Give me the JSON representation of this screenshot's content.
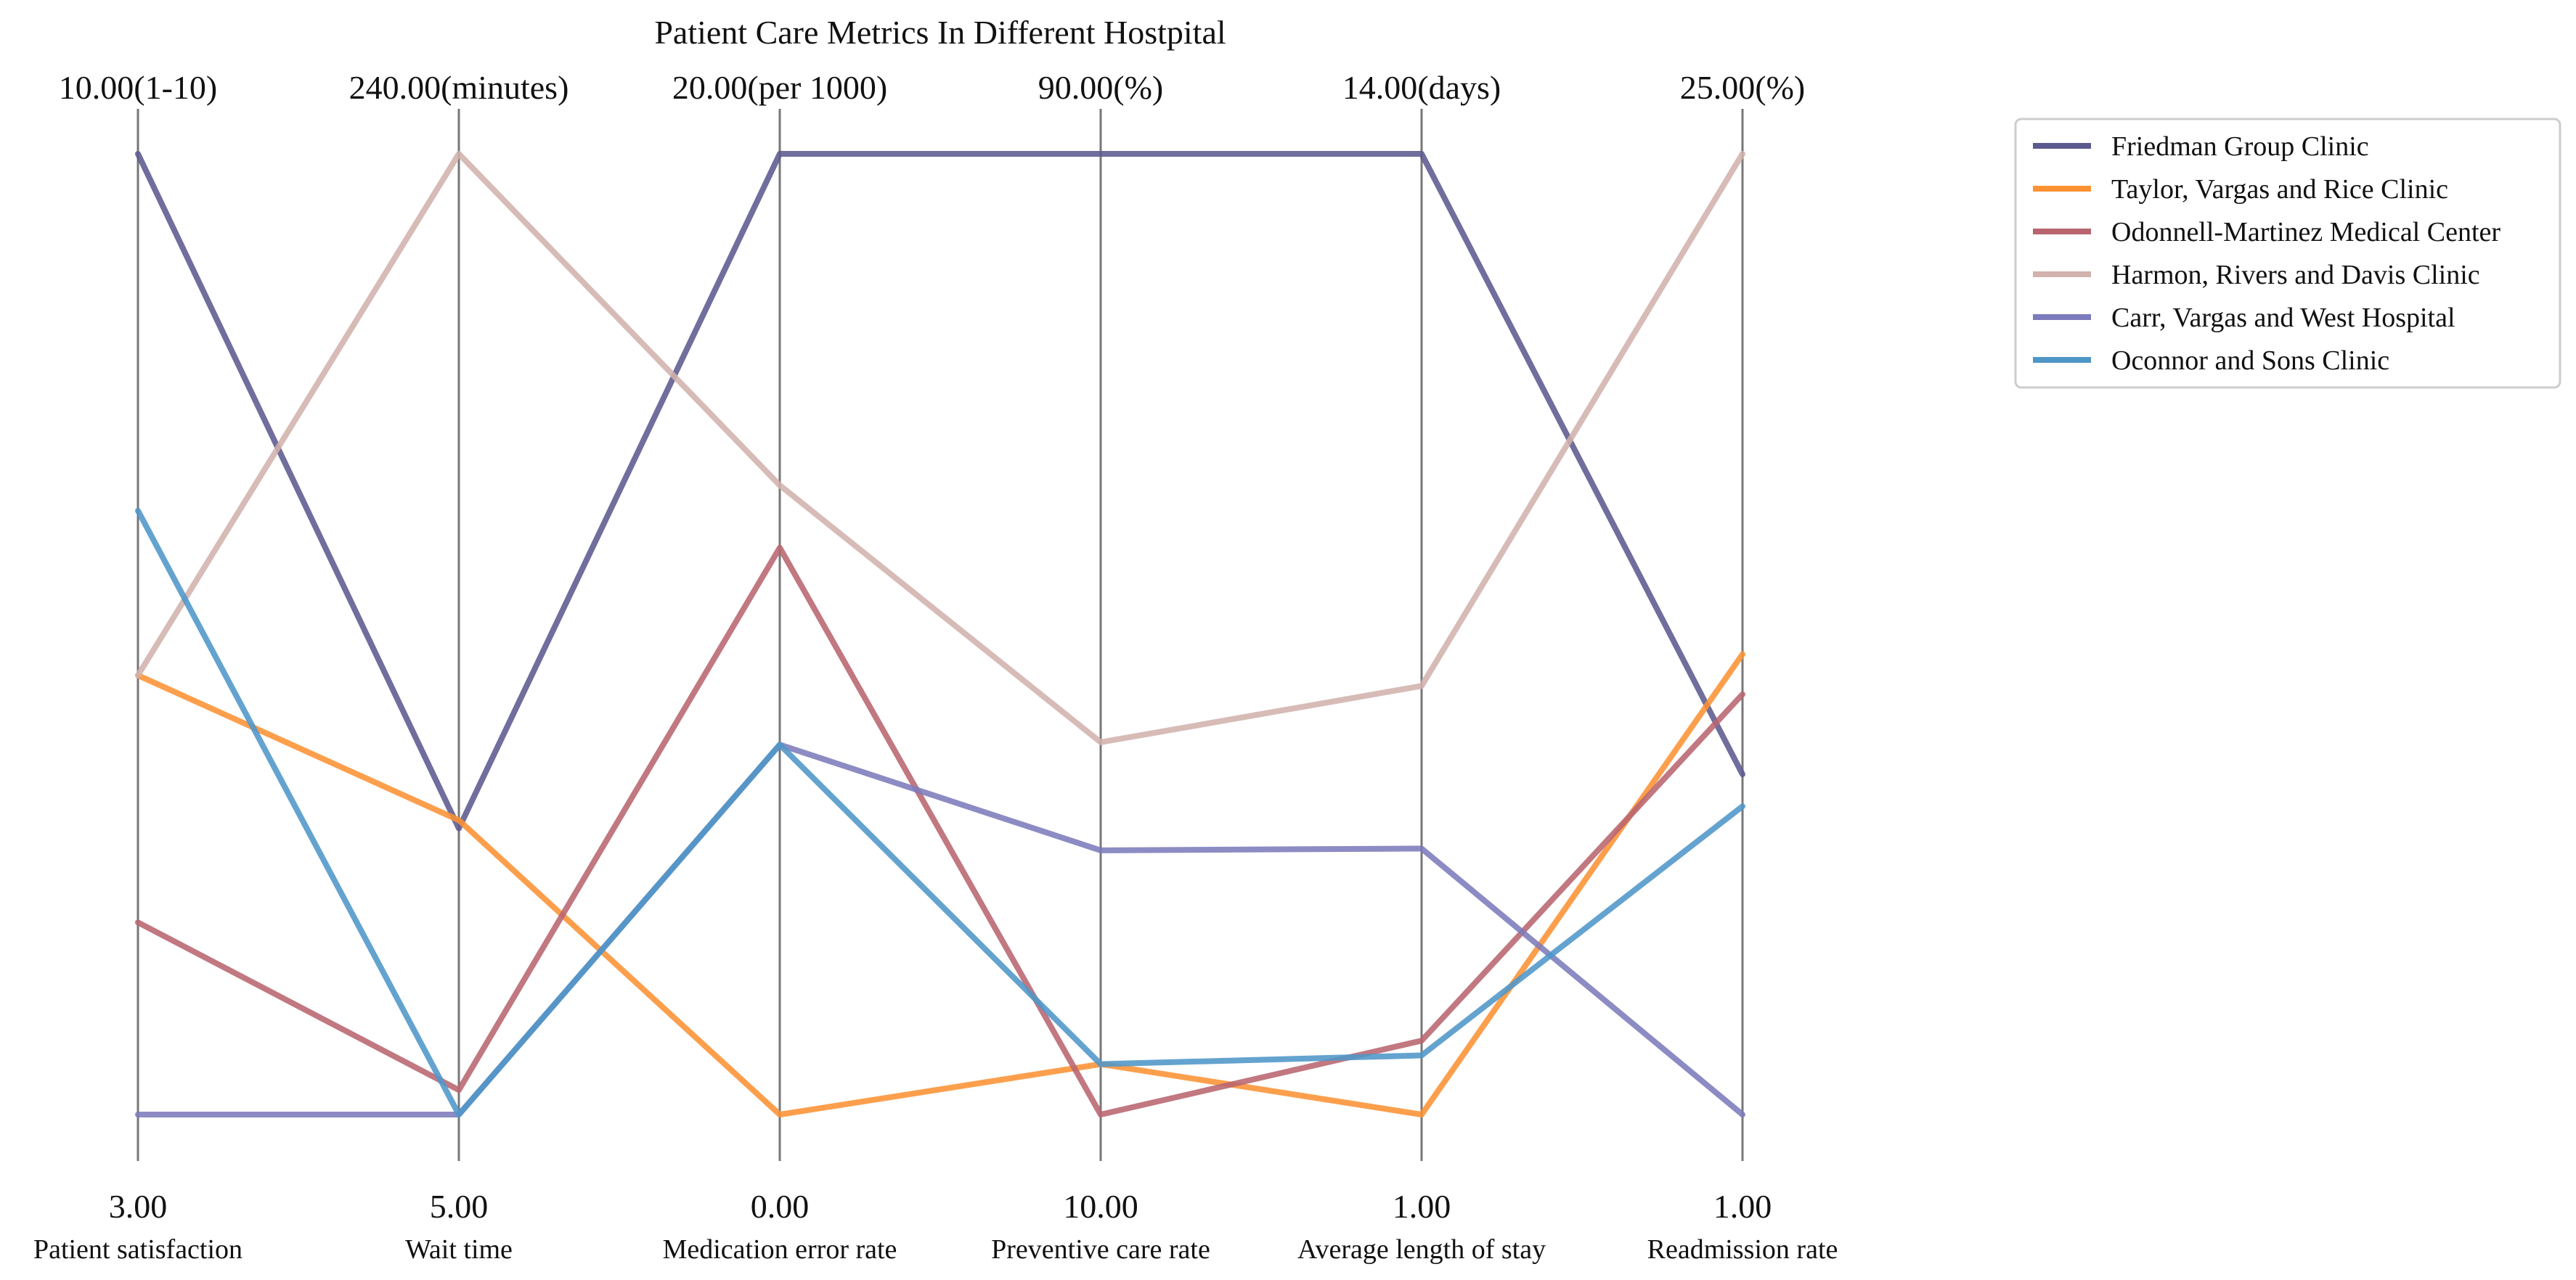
{
  "chart_data": {
    "type": "parallel-coordinates",
    "title": "Patient Care Metrics In Different Hostpital",
    "legend_position": "right",
    "axes": [
      {
        "name": "Patient satisfaction",
        "min": 3,
        "max": 10,
        "min_label": "3.00",
        "max_label": "10.00(1-10)"
      },
      {
        "name": "Wait time",
        "min": 5,
        "max": 240,
        "min_label": "5.00",
        "max_label": "240.00(minutes)"
      },
      {
        "name": "Medication error rate",
        "min": 0,
        "max": 20,
        "min_label": "0.00",
        "max_label": "20.00(per 1000)"
      },
      {
        "name": "Preventive care rate",
        "min": 10,
        "max": 90,
        "min_label": "10.00",
        "max_label": "90.00(%)"
      },
      {
        "name": "Average length of stay",
        "min": 1,
        "max": 14,
        "min_label": "1.00",
        "max_label": "14.00(days)"
      },
      {
        "name": "Readmission rate",
        "min": 1,
        "max": 25,
        "min_label": "1.00",
        "max_label": "25.00(%)"
      }
    ],
    "series": [
      {
        "name": "Friedman Group  Clinic",
        "color": "#5b5a8e",
        "values": [
          10,
          75,
          20,
          90,
          14,
          9.5
        ]
      },
      {
        "name": "Taylor, Vargas and Rice  Clinic",
        "color": "#fc9234",
        "values": [
          6.2,
          77,
          0,
          14.2,
          1,
          12.5
        ]
      },
      {
        "name": "Odonnell-Martinez  Medical Center",
        "color": "#b8656f",
        "values": [
          4.4,
          11,
          11.8,
          10,
          2,
          11.5
        ]
      },
      {
        "name": "Harmon, Rivers and Davis  Clinic",
        "color": "#d1b2ad",
        "values": [
          6.2,
          240,
          13.1,
          41,
          6.8,
          25
        ]
      },
      {
        "name": "Carr, Vargas and West  Hospital",
        "color": "#7c7bbb",
        "values": [
          3,
          5,
          7.7,
          32,
          4.6,
          1
        ]
      },
      {
        "name": "Oconnor and Sons  Clinic",
        "color": "#4f96c8",
        "values": [
          7.4,
          5,
          7.7,
          14.2,
          1.8,
          8.7
        ]
      }
    ]
  }
}
